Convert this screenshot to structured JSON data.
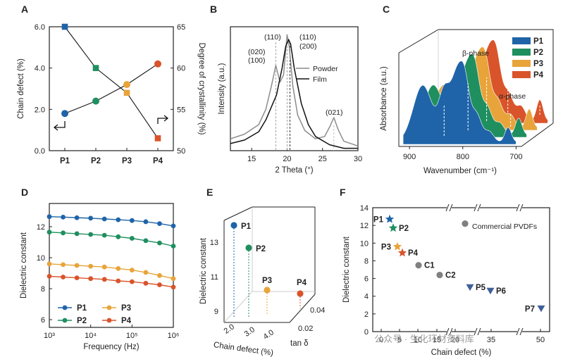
{
  "panel_letters": [
    "A",
    "B",
    "C",
    "D",
    "E",
    "F"
  ],
  "watermark": "公众号 · 生化环材资料库",
  "chart_data": [
    {
      "panel": "A",
      "type": "line",
      "categories": [
        "P1",
        "P2",
        "P3",
        "P4"
      ],
      "xlabel": "",
      "ylabel": "Chain defect (%)",
      "ylabel_right": "Degree of crystallinity (%)",
      "ylim": [
        0,
        6
      ],
      "yticks": [
        "0.0",
        "2.0",
        "4.0",
        "6.0"
      ],
      "ylim_right": [
        50,
        65
      ],
      "yticks_right": [
        "50",
        "55",
        "60",
        "65"
      ],
      "series": [
        {
          "axis": "left",
          "marker": "circle",
          "values": [
            1.8,
            2.4,
            3.2,
            4.2
          ]
        },
        {
          "axis": "right",
          "marker": "square",
          "values": [
            65,
            60,
            57,
            51.5
          ]
        }
      ],
      "colors": [
        "#1f64a8",
        "#1f8f5f",
        "#e8a43a",
        "#d9542b"
      ]
    },
    {
      "panel": "B",
      "type": "line",
      "xlabel": "2 Theta (°)",
      "ylabel": "Intensity (a.u.)",
      "xlim": [
        12,
        30
      ],
      "xticks": [
        "15",
        "20",
        "25",
        "30"
      ],
      "series": [
        {
          "name": "Powder",
          "color": "#8c8c8c",
          "x": [
            12,
            14,
            16,
            17,
            17.8,
            18.4,
            19.0,
            19.5,
            20.0,
            20.3,
            20.8,
            21.5,
            22.5,
            24,
            25.3,
            26.0,
            26.6,
            27.2,
            28,
            30
          ],
          "y": [
            0.1,
            0.14,
            0.22,
            0.35,
            0.55,
            0.72,
            0.58,
            0.64,
            0.98,
            0.88,
            0.55,
            0.3,
            0.17,
            0.1,
            0.12,
            0.2,
            0.28,
            0.18,
            0.08,
            0.04
          ]
        },
        {
          "name": "Film",
          "color": "#111111",
          "x": [
            12,
            14,
            16,
            17,
            18,
            18.5,
            19.3,
            19.8,
            20.2,
            20.5,
            21,
            22,
            23,
            24,
            26,
            28,
            30
          ],
          "y": [
            0.06,
            0.09,
            0.16,
            0.26,
            0.4,
            0.47,
            0.7,
            0.88,
            0.94,
            0.9,
            0.7,
            0.4,
            0.22,
            0.12,
            0.05,
            0.02,
            0.02
          ]
        }
      ],
      "annotations": [
        "(020)",
        "(100)",
        "(110)",
        "(110)",
        "(200)",
        "(021)"
      ]
    },
    {
      "panel": "C",
      "type": "area",
      "xlabel": "Wavenumber (cm⁻¹)",
      "ylabel": "Absorbance (a.u.)",
      "xlim": [
        920,
        690
      ],
      "xticks": [
        "900",
        "800",
        "700"
      ],
      "series": [
        {
          "name": "P1",
          "color": "#1f64a8"
        },
        {
          "name": "P2",
          "color": "#1f8f5f"
        },
        {
          "name": "P3",
          "color": "#e8a43a"
        },
        {
          "name": "P4",
          "color": "#d9542b"
        }
      ],
      "annotations": [
        "β-phase",
        "α-phase"
      ]
    },
    {
      "panel": "D",
      "type": "line",
      "xlabel": "Frequency (Hz)",
      "ylabel": "Dielectric constant",
      "xscale": "log",
      "xlim": [
        1000,
        1000000
      ],
      "xticks": [
        "10³",
        "10⁴",
        "10⁵",
        "10⁶"
      ],
      "ylim": [
        5.5,
        13.5
      ],
      "yticks": [
        "6",
        "8",
        "10",
        "12"
      ],
      "series": [
        {
          "name": "P1",
          "color": "#1f64a8",
          "values": [
            12.65,
            12.62,
            12.58,
            12.55,
            12.5,
            12.45,
            12.4,
            12.32,
            12.2,
            12.05
          ]
        },
        {
          "name": "P2",
          "color": "#1f8f5f",
          "values": [
            11.65,
            11.6,
            11.55,
            11.5,
            11.45,
            11.35,
            11.25,
            11.1,
            10.95,
            10.75
          ]
        },
        {
          "name": "P3",
          "color": "#e8a43a",
          "values": [
            9.6,
            9.55,
            9.5,
            9.45,
            9.4,
            9.3,
            9.2,
            9.05,
            8.85,
            8.65
          ]
        },
        {
          "name": "P4",
          "color": "#d9542b",
          "values": [
            8.8,
            8.75,
            8.7,
            8.65,
            8.6,
            8.5,
            8.45,
            8.35,
            8.25,
            8.1
          ]
        }
      ],
      "legend": "lower-left"
    },
    {
      "panel": "E",
      "type": "scatter",
      "xlabel": "Chain defect (%)",
      "ylabel": "Dielectric constant",
      "zlabel": "tan δ",
      "xticks": [
        "2.0",
        "3.0",
        "4.0"
      ],
      "yticks": [
        "9",
        "11",
        "13"
      ],
      "zticks": [
        "0.02",
        "0.04"
      ],
      "points": [
        {
          "name": "P1",
          "color": "#1f64a8",
          "dielectric": 12.9
        },
        {
          "name": "P2",
          "color": "#1f8f5f",
          "dielectric": 11.7
        },
        {
          "name": "P3",
          "color": "#e8a43a",
          "dielectric": 9.7
        },
        {
          "name": "P4",
          "color": "#d9542b",
          "dielectric": 9.6
        }
      ]
    },
    {
      "panel": "F",
      "type": "scatter",
      "xlabel": "Chain defect (%)",
      "ylabel": "Dielectric constant",
      "ylim": [
        0,
        14
      ],
      "yticks": [
        "0",
        "2",
        "4",
        "6",
        "8",
        "10",
        "12",
        "14"
      ],
      "xticks": [
        "0",
        "5",
        "10",
        "15",
        "20",
        "35",
        "50"
      ],
      "legend_label": "Commercial PVDFs",
      "points": [
        {
          "name": "P1",
          "x": 1.8,
          "y": 12.7,
          "marker": "star",
          "color": "#1f64a8"
        },
        {
          "name": "P2",
          "x": 2.4,
          "y": 11.7,
          "marker": "star",
          "color": "#1f8f5f"
        },
        {
          "name": "P3",
          "x": 3.2,
          "y": 9.6,
          "marker": "star",
          "color": "#e8a43a"
        },
        {
          "name": "P4",
          "x": 4.2,
          "y": 8.9,
          "marker": "star",
          "color": "#d9542b"
        },
        {
          "name": "C1",
          "x": 7,
          "y": 7.5,
          "marker": "circle",
          "color": "#808080"
        },
        {
          "name": "C2",
          "x": 11.5,
          "y": 6.4,
          "marker": "circle",
          "color": "#808080"
        },
        {
          "name": "",
          "x": 20,
          "y": 12.2,
          "marker": "circle",
          "color": "#808080"
        },
        {
          "name": "P5",
          "x": 27,
          "y": 5.0,
          "marker": "triangle",
          "color": "#3e5f9a"
        },
        {
          "name": "P6",
          "x": 35,
          "y": 4.6,
          "marker": "triangle",
          "color": "#3e5f9a"
        },
        {
          "name": "P7",
          "x": 50,
          "y": 2.6,
          "marker": "triangle",
          "color": "#3e5f9a"
        }
      ]
    }
  ]
}
